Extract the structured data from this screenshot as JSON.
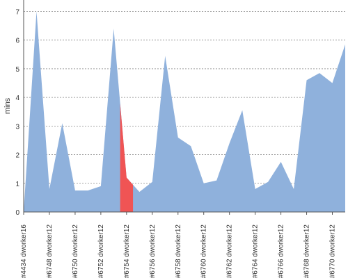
{
  "chart_data": {
    "type": "area",
    "ylabel": "mins",
    "xlabel": "",
    "ylim": [
      0,
      7.4
    ],
    "y_ticks": [
      0,
      1,
      2,
      3,
      4,
      5,
      6,
      7
    ],
    "grid": true,
    "colors": {
      "area": "#8fb1dc",
      "highlight": "#f05454"
    },
    "x_tick_labels": [
      "#4434 dworker16",
      "#6748 dworker12",
      "#6750 dworker12",
      "#6752 dworker12",
      "#6754 dworker12",
      "#6756 dworker12",
      "#6758 dworker12",
      "#6760 dworker12",
      "#6762 dworker12",
      "#6764 dworker12",
      "#6766 dworker12",
      "#6768 dworker12",
      "#6770 dworker12"
    ],
    "x_tick_positions": [
      0,
      2,
      4,
      6,
      8,
      10,
      12,
      14,
      16,
      18,
      20,
      22,
      24
    ],
    "values": [
      0,
      7.0,
      0.8,
      3.1,
      0.75,
      0.75,
      0.9,
      6.4,
      1.2,
      0.7,
      1.05,
      5.45,
      2.6,
      2.3,
      1.0,
      1.1,
      2.4,
      3.55,
      0.8,
      1.05,
      1.75,
      0.8,
      4.6,
      4.85,
      4.5,
      5.85
    ],
    "highlight": {
      "from_index": 7.5,
      "to_index": 8.5,
      "color": "#f05454"
    }
  }
}
